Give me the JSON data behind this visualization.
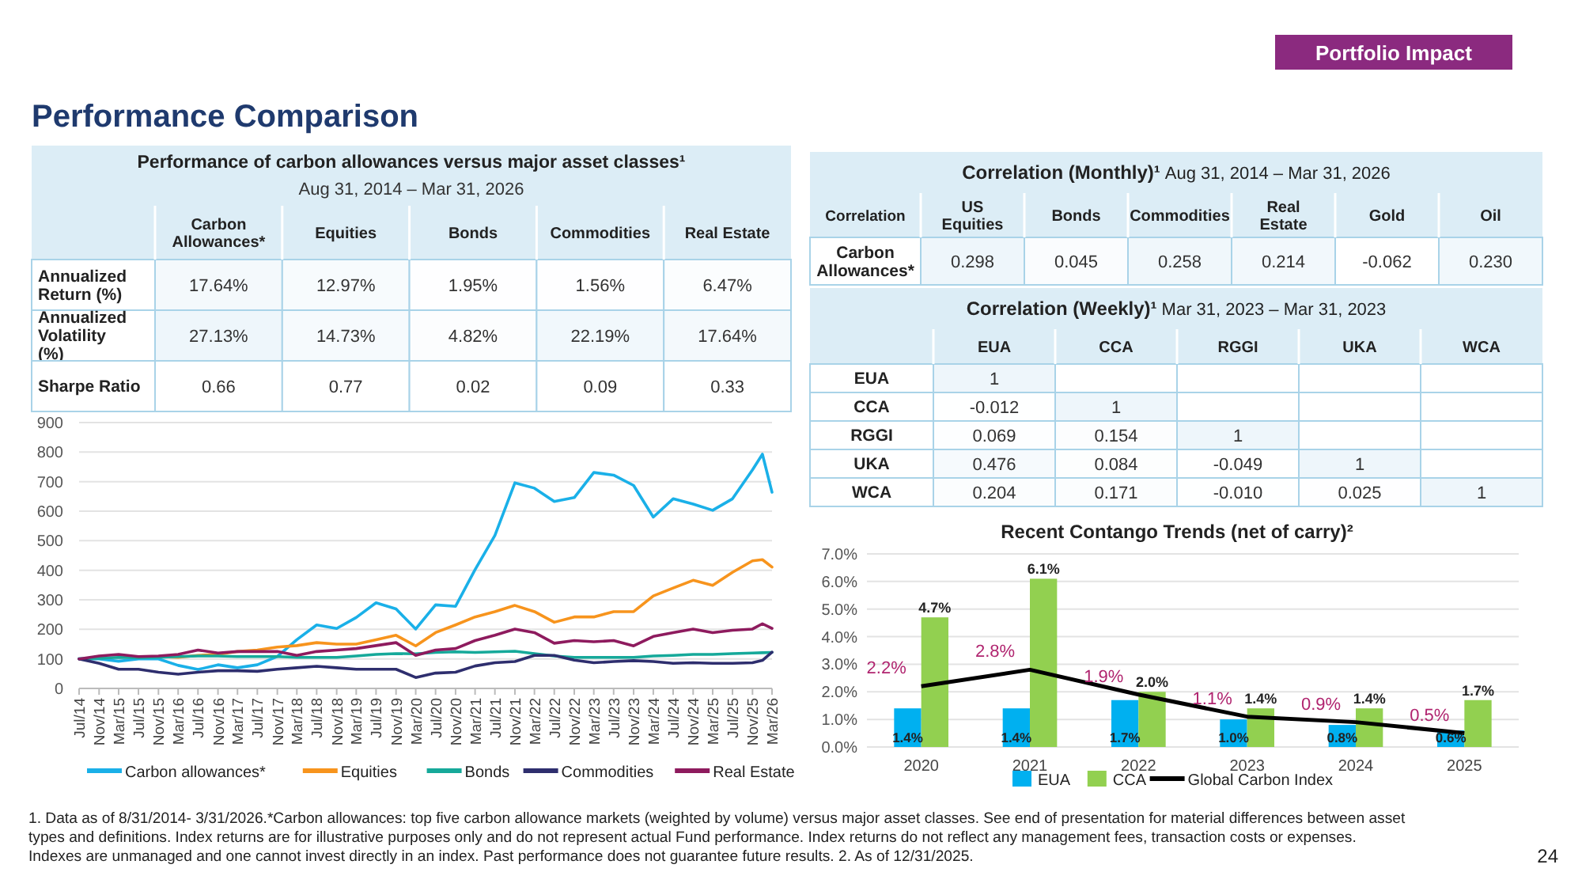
{
  "chart_data": [
    {
      "type": "other",
      "title": "Performance Comparison",
      "annotations": [
        "Portfolio Impact",
        "1. Data as of 8/31/2014- 3/31/2026.*Carbon allowances: top five carbon allowance markets (weighted by volume) versus major asset classes. See end of presentation for material differences between asset types and definitions. Index returns are for illustrative purposes only and do not represent actual Fund performance. Index returns do not reflect any management fees, transaction costs or expenses. Indexes are unmanaged and one cannot invest directly in an index. Past performance does not guarantee future results. 2. As of 12/31/2025.",
        "24"
      ]
    },
    {
      "type": "heatmap",
      "title": "Performance of carbon allowances versus major asset classes¹",
      "subtitle": "Aug 31, 2014 – Mar 31, 2026",
      "categories": [
        "Carbon Allowances*",
        "Equities",
        "Bonds",
        "Commodities",
        "Real Estate"
      ],
      "y_categories": [
        "Annualized Return (%)",
        "Annualized Volatility (%)",
        "Sharpe Ratio"
      ],
      "cells": [
        [
          17.64,
          12.97,
          1.95,
          1.56,
          6.47
        ],
        [
          27.13,
          14.73,
          4.82,
          22.19,
          17.64
        ],
        [
          0.66,
          0.77,
          0.02,
          0.09,
          0.33
        ]
      ],
      "cell_labels": [
        [
          "17.64%",
          "12.97%",
          "1.95%",
          "1.56%",
          "6.47%"
        ],
        [
          "27.13%",
          "14.73%",
          "4.82%",
          "22.19%",
          "17.64%"
        ],
        [
          "0.66",
          "0.77",
          "0.02",
          "0.09",
          "0.33"
        ]
      ],
      "data_labels": true
    },
    {
      "type": "heatmap",
      "title": "Correlation (Monthly)¹",
      "subtitle": "Aug 31, 2014 – Mar 31, 2026",
      "ylabel": "Correlation",
      "categories": [
        "US Equities",
        "Bonds",
        "Commodities",
        "Real Estate",
        "Gold",
        "Oil"
      ],
      "y_categories": [
        "Carbon Allowances*"
      ],
      "cells": [
        [
          0.298,
          0.045,
          0.258,
          0.214,
          -0.062,
          0.23
        ]
      ],
      "cell_labels": [
        [
          "0.298",
          "0.045",
          "0.258",
          "0.214",
          "-0.062",
          "0.230"
        ]
      ],
      "data_labels": true
    },
    {
      "type": "heatmap",
      "title": "Correlation (Weekly)¹",
      "subtitle": "Mar 31, 2023 – Mar 31, 2023",
      "categories": [
        "EUA",
        "CCA",
        "RGGI",
        "UKA",
        "WCA"
      ],
      "y_categories": [
        "EUA",
        "CCA",
        "RGGI",
        "UKA",
        "WCA"
      ],
      "cells": [
        [
          1,
          null,
          null,
          null,
          null
        ],
        [
          -0.012,
          1,
          null,
          null,
          null
        ],
        [
          0.069,
          0.154,
          1,
          null,
          null
        ],
        [
          0.476,
          0.084,
          -0.049,
          1,
          null
        ],
        [
          0.204,
          0.171,
          -0.01,
          0.025,
          1
        ]
      ],
      "cell_labels": [
        [
          "1",
          null,
          null,
          null,
          null
        ],
        [
          "-0.012",
          "1",
          null,
          null,
          null
        ],
        [
          "0.069",
          "0.154",
          "1",
          null,
          null
        ],
        [
          "0.476",
          "0.084",
          "-0.049",
          "1",
          null
        ],
        [
          "0.204",
          "0.171",
          "-0.010",
          "0.025",
          "1"
        ]
      ],
      "data_labels": true
    },
    {
      "type": "line",
      "x": [
        "2014-07",
        "2014-11",
        "2015-03",
        "2015-07",
        "2015-11",
        "2016-03",
        "2016-07",
        "2016-11",
        "2017-03",
        "2017-07",
        "2017-11",
        "2018-03",
        "2018-07",
        "2018-11",
        "2019-03",
        "2019-07",
        "2019-11",
        "2020-03",
        "2020-07",
        "2020-11",
        "2021-03",
        "2021-07",
        "2021-11",
        "2022-03",
        "2022-07",
        "2022-11",
        "2023-03",
        "2023-07",
        "2023-11",
        "2024-03",
        "2024-07",
        "2024-11",
        "2025-03",
        "2025-07",
        "2025-11",
        "2026-01",
        "2026-03"
      ],
      "series": [
        {
          "name": "Carbon allowances*",
          "color": "#1ab0e8",
          "values": [
            100,
            100,
            92,
            100,
            100,
            78,
            64,
            80,
            70,
            80,
            108,
            165,
            215,
            203,
            240,
            290,
            269,
            201,
            283,
            278,
            402,
            518,
            696,
            678,
            633,
            646,
            731,
            722,
            687,
            580,
            642,
            624,
            603,
            642,
            740,
            793,
            664
          ]
        },
        {
          "name": "Equities",
          "color": "#f7941d",
          "values": [
            null,
            null,
            null,
            null,
            108,
            105,
            112,
            115,
            125,
            130,
            140,
            145,
            155,
            150,
            150,
            165,
            180,
            144,
            189,
            215,
            242,
            260,
            281,
            260,
            224,
            242,
            242,
            260,
            260,
            313,
            340,
            366,
            349,
            393,
            432,
            436,
            411
          ]
        },
        {
          "name": "Bonds",
          "color": "#16a99a",
          "values": [
            100,
            102,
            105,
            104,
            105,
            108,
            110,
            110,
            108,
            108,
            108,
            105,
            105,
            105,
            110,
            115,
            118,
            117,
            122,
            124,
            122,
            124,
            126,
            118,
            110,
            105,
            105,
            105,
            105,
            110,
            112,
            115,
            115,
            118,
            120,
            121,
            122
          ]
        },
        {
          "name": "Commodities",
          "color": "#2e2e6e",
          "values": [
            100,
            85,
            65,
            65,
            55,
            48,
            55,
            60,
            60,
            58,
            65,
            70,
            75,
            70,
            65,
            65,
            65,
            37,
            52,
            55,
            76,
            87,
            91,
            112,
            112,
            96,
            87,
            91,
            94,
            91,
            85,
            87,
            85,
            85,
            87,
            95,
            123
          ]
        },
        {
          "name": "Real Estate",
          "color": "#8e1b5e",
          "values": [
            100,
            110,
            115,
            108,
            110,
            115,
            130,
            120,
            125,
            125,
            125,
            112,
            125,
            130,
            135,
            145,
            155,
            112,
            130,
            135,
            162,
            180,
            201,
            189,
            153,
            162,
            158,
            162,
            144,
            176,
            189,
            201,
            189,
            197,
            201,
            219,
            203
          ]
        }
      ],
      "xlim": [
        "2014-07",
        "2026-03"
      ],
      "xticks": [
        {
          "value": "2014-07",
          "label": "Jul/14"
        },
        {
          "value": "2014-11",
          "label": "Nov/14"
        },
        {
          "value": "2015-03",
          "label": "Mar/15"
        },
        {
          "value": "2015-07",
          "label": "Jul/15"
        },
        {
          "value": "2015-11",
          "label": "Nov/15"
        },
        {
          "value": "2016-03",
          "label": "Mar/16"
        },
        {
          "value": "2016-07",
          "label": "Jul/16"
        },
        {
          "value": "2016-11",
          "label": "Nov/16"
        },
        {
          "value": "2017-03",
          "label": "Mar/17"
        },
        {
          "value": "2017-07",
          "label": "Jul/17"
        },
        {
          "value": "2017-11",
          "label": "Nov/17"
        },
        {
          "value": "2018-03",
          "label": "Mar/18"
        },
        {
          "value": "2018-07",
          "label": "Jul/18"
        },
        {
          "value": "2018-11",
          "label": "Nov/18"
        },
        {
          "value": "2019-03",
          "label": "Mar/19"
        },
        {
          "value": "2019-07",
          "label": "Jul/19"
        },
        {
          "value": "2019-11",
          "label": "Nov/19"
        },
        {
          "value": "2020-03",
          "label": "Mar/20"
        },
        {
          "value": "2020-07",
          "label": "Jul/20"
        },
        {
          "value": "2020-11",
          "label": "Nov/20"
        },
        {
          "value": "2021-03",
          "label": "Mar/21"
        },
        {
          "value": "2021-07",
          "label": "Jul/21"
        },
        {
          "value": "2021-11",
          "label": "Nov/21"
        },
        {
          "value": "2022-03",
          "label": "Mar/22"
        },
        {
          "value": "2022-07",
          "label": "Jul/22"
        },
        {
          "value": "2022-11",
          "label": "Nov/22"
        },
        {
          "value": "2023-03",
          "label": "Mar/23"
        },
        {
          "value": "2023-07",
          "label": "Jul/23"
        },
        {
          "value": "2023-11",
          "label": "Nov/23"
        },
        {
          "value": "2024-03",
          "label": "Mar/24"
        },
        {
          "value": "2024-07",
          "label": "Jul/24"
        },
        {
          "value": "2024-11",
          "label": "Nov/24"
        },
        {
          "value": "2025-03",
          "label": "Mar/25"
        },
        {
          "value": "2025-07",
          "label": "Jul/25"
        },
        {
          "value": "2025-11",
          "label": "Nov/25"
        },
        {
          "value": "2026-03",
          "label": "Mar/26"
        }
      ],
      "ylim": [
        0,
        900
      ],
      "yticks": [
        0,
        100,
        200,
        300,
        400,
        500,
        600,
        700,
        800,
        900
      ],
      "grid": "y",
      "legend": "bottom"
    },
    {
      "type": "bar",
      "title": "Recent Contango Trends (net of carry)²",
      "categories": [
        "2020",
        "2021",
        "2022",
        "2023",
        "2024",
        "2025"
      ],
      "series": [
        {
          "name": "EUA",
          "color": "#00b0f0",
          "values": [
            1.4,
            1.4,
            1.7,
            1.0,
            0.8,
            0.6
          ],
          "value_labels": [
            "1.4%",
            "1.4%",
            "1.7%",
            "1.0%",
            "0.8%",
            "0.6%"
          ]
        },
        {
          "name": "CCA",
          "color": "#92d050",
          "values": [
            4.7,
            6.1,
            2.0,
            1.4,
            1.4,
            1.7
          ],
          "value_labels": [
            "4.7%",
            "6.1%",
            "2.0%",
            "1.4%",
            "1.4%",
            "1.7%"
          ]
        },
        {
          "name": "Global Carbon Index",
          "type": "line",
          "color": "#000000",
          "values": [
            2.2,
            2.8,
            1.9,
            1.1,
            0.9,
            0.5
          ],
          "value_labels": [
            "2.2%",
            "2.8%",
            "1.9%",
            "1.1%",
            "0.9%",
            "0.5%"
          ]
        }
      ],
      "ylim": [
        0,
        7
      ],
      "yticks": [
        {
          "value": 0,
          "label": "0.0%"
        },
        {
          "value": 1,
          "label": "1.0%"
        },
        {
          "value": 2,
          "label": "2.0%"
        },
        {
          "value": 3,
          "label": "3.0%"
        },
        {
          "value": 4,
          "label": "4.0%"
        },
        {
          "value": 5,
          "label": "5.0%"
        },
        {
          "value": 6,
          "label": "6.0%"
        },
        {
          "value": 7,
          "label": "7.0%"
        }
      ],
      "grid": "y",
      "legend": "bottom"
    }
  ]
}
